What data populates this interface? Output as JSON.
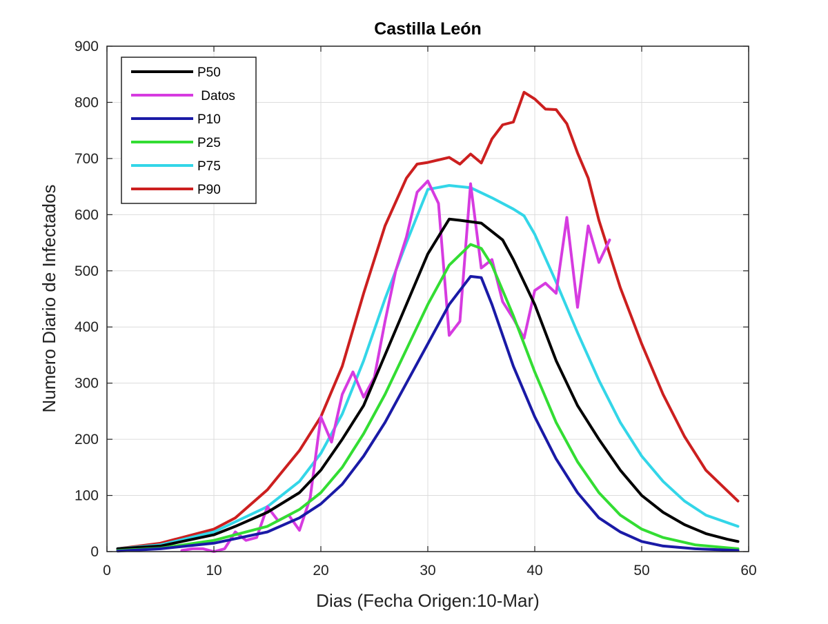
{
  "chart_data": {
    "type": "line",
    "title": "Castilla León",
    "xlabel": "Dias (Fecha Origen:10-Mar)",
    "ylabel": "Numero Diario de Infectados",
    "xlim": [
      0,
      60
    ],
    "ylim": [
      0,
      900
    ],
    "xticks": [
      0,
      10,
      20,
      30,
      40,
      50,
      60
    ],
    "yticks": [
      0,
      100,
      200,
      300,
      400,
      500,
      600,
      700,
      800,
      900
    ],
    "grid": true,
    "legend_position": "top-left",
    "series": [
      {
        "name": "P50",
        "color": "#000000",
        "x": [
          1,
          5,
          10,
          12,
          15,
          18,
          20,
          22,
          24,
          26,
          28,
          30,
          32,
          33,
          35,
          37,
          38,
          40,
          42,
          44,
          46,
          48,
          50,
          52,
          54,
          56,
          58,
          59
        ],
        "y": [
          5,
          10,
          30,
          45,
          70,
          105,
          145,
          200,
          260,
          350,
          440,
          530,
          592,
          590,
          585,
          555,
          520,
          440,
          340,
          260,
          200,
          145,
          100,
          70,
          48,
          32,
          22,
          18
        ]
      },
      {
        "name": " Datos",
        "color": "#d63be0",
        "x": [
          7,
          8,
          9,
          10,
          11,
          12,
          13,
          14,
          15,
          16,
          17,
          18,
          19,
          20,
          21,
          22,
          23,
          24,
          25,
          26,
          27,
          28,
          29,
          30,
          31,
          32,
          33,
          34,
          35,
          36,
          37,
          38,
          39,
          40,
          41,
          42,
          43,
          44,
          45,
          46,
          47
        ],
        "y": [
          2,
          5,
          5,
          0,
          5,
          35,
          20,
          25,
          80,
          55,
          65,
          38,
          95,
          240,
          195,
          280,
          320,
          275,
          310,
          410,
          500,
          560,
          640,
          660,
          620,
          385,
          410,
          655,
          505,
          520,
          445,
          415,
          380,
          465,
          478,
          460,
          595,
          435,
          580,
          515,
          555
        ]
      },
      {
        "name": "P10",
        "color": "#1a1aa6",
        "x": [
          1,
          5,
          10,
          15,
          18,
          20,
          22,
          24,
          26,
          28,
          30,
          32,
          34,
          35,
          36,
          38,
          40,
          42,
          44,
          46,
          48,
          50,
          52,
          55,
          59
        ],
        "y": [
          1,
          5,
          15,
          35,
          60,
          85,
          120,
          170,
          230,
          300,
          370,
          440,
          490,
          488,
          440,
          330,
          240,
          165,
          105,
          60,
          35,
          18,
          10,
          5,
          2
        ]
      },
      {
        "name": "P25",
        "color": "#33dd33",
        "x": [
          1,
          5,
          10,
          15,
          18,
          20,
          22,
          24,
          26,
          28,
          30,
          32,
          34,
          35,
          36,
          38,
          40,
          42,
          44,
          46,
          48,
          50,
          52,
          55,
          59
        ],
        "y": [
          2,
          6,
          20,
          45,
          75,
          105,
          150,
          210,
          280,
          360,
          440,
          510,
          547,
          540,
          510,
          420,
          320,
          230,
          160,
          105,
          65,
          40,
          25,
          12,
          5
        ]
      },
      {
        "name": "P75",
        "color": "#33d6e8",
        "x": [
          1,
          5,
          10,
          15,
          18,
          20,
          22,
          24,
          26,
          28,
          30,
          32,
          34,
          36,
          38,
          39,
          40,
          42,
          44,
          46,
          48,
          50,
          52,
          54,
          56,
          59
        ],
        "y": [
          5,
          12,
          35,
          80,
          125,
          175,
          245,
          340,
          450,
          550,
          645,
          652,
          648,
          630,
          610,
          598,
          565,
          480,
          390,
          305,
          230,
          170,
          125,
          90,
          65,
          45
        ]
      },
      {
        "name": "P90",
        "color": "#cc1f1f",
        "x": [
          1,
          5,
          10,
          12,
          15,
          18,
          20,
          22,
          24,
          26,
          28,
          29,
          30,
          32,
          33,
          34,
          35,
          36,
          37,
          38,
          39,
          40,
          41,
          42,
          43,
          44,
          45,
          46,
          48,
          50,
          52,
          54,
          56,
          59
        ],
        "y": [
          5,
          15,
          40,
          60,
          110,
          180,
          240,
          330,
          460,
          580,
          665,
          690,
          693,
          702,
          690,
          708,
          692,
          735,
          760,
          765,
          818,
          806,
          788,
          787,
          762,
          710,
          665,
          590,
          470,
          370,
          280,
          205,
          145,
          90
        ]
      }
    ]
  }
}
